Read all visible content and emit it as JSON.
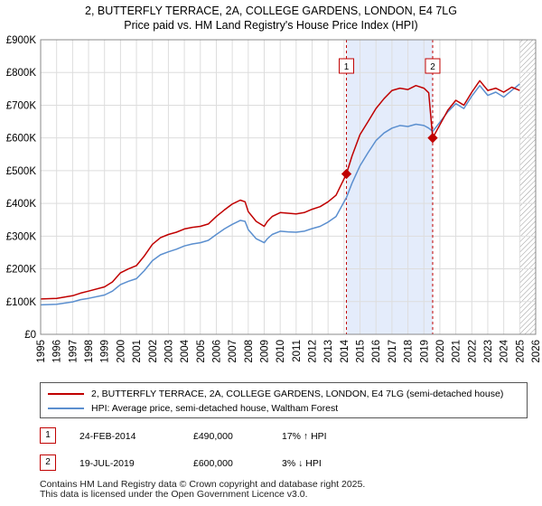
{
  "title": {
    "line1": "2, BUTTERFLY TERRACE, 2A, COLLEGE GARDENS, LONDON, E4 7LG",
    "line2": "Price paid vs. HM Land Registry's House Price Index (HPI)"
  },
  "colors": {
    "property": "#c00000",
    "hpi": "#5b8fcf",
    "shade": "#e4ecfb",
    "grid": "#dddddd",
    "hatch": "#999999"
  },
  "chart_data": {
    "type": "line",
    "y_ticks": [
      0,
      100000,
      200000,
      300000,
      400000,
      500000,
      600000,
      700000,
      800000,
      900000
    ],
    "y_tick_labels": [
      "£0",
      "£100K",
      "£200K",
      "£300K",
      "£400K",
      "£500K",
      "£600K",
      "£700K",
      "£800K",
      "£900K"
    ],
    "x_ticks": [
      1995,
      1996,
      1997,
      1998,
      1999,
      2000,
      2001,
      2002,
      2003,
      2004,
      2005,
      2006,
      2007,
      2008,
      2009,
      2010,
      2011,
      2012,
      2013,
      2014,
      2015,
      2016,
      2017,
      2018,
      2019,
      2020,
      2021,
      2022,
      2023,
      2024,
      2025,
      2026
    ],
    "x_range": [
      1995,
      2026
    ],
    "ylim": [
      0,
      900000
    ],
    "shaded_span": [
      2014.15,
      2019.55
    ],
    "future_hatch_from": 2025.0,
    "series": [
      {
        "name": "2, BUTTERFLY TERRACE, 2A, COLLEGE GARDENS, LONDON, E4 7LG (semi-detached house)",
        "x": [
          1995.0,
          1996.0,
          1997.0,
          1997.5,
          1998.0,
          1999.0,
          1999.5,
          2000.0,
          2000.5,
          2001.0,
          2001.5,
          2002.0,
          2002.5,
          2003.0,
          2003.5,
          2004.0,
          2004.5,
          2005.0,
          2005.5,
          2006.0,
          2006.5,
          2007.0,
          2007.5,
          2007.8,
          2008.0,
          2008.5,
          2009.0,
          2009.2,
          2009.5,
          2010.0,
          2010.5,
          2011.0,
          2011.5,
          2012.0,
          2012.5,
          2013.0,
          2013.5,
          2014.15,
          2014.5,
          2015.0,
          2015.5,
          2016.0,
          2016.5,
          2017.0,
          2017.5,
          2018.0,
          2018.5,
          2019.0,
          2019.3,
          2019.55,
          2020.0,
          2020.5,
          2021.0,
          2021.5,
          2022.0,
          2022.5,
          2023.0,
          2023.5,
          2024.0,
          2024.5,
          2025.0
        ],
        "y": [
          108000,
          110000,
          118000,
          126000,
          132000,
          145000,
          160000,
          188000,
          200000,
          210000,
          240000,
          275000,
          295000,
          305000,
          312000,
          322000,
          327000,
          330000,
          337000,
          360000,
          380000,
          398000,
          410000,
          405000,
          375000,
          345000,
          330000,
          345000,
          360000,
          372000,
          370000,
          368000,
          372000,
          382000,
          390000,
          405000,
          425000,
          490000,
          545000,
          610000,
          650000,
          690000,
          720000,
          745000,
          752000,
          748000,
          760000,
          752000,
          738000,
          600000,
          640000,
          685000,
          715000,
          700000,
          740000,
          775000,
          745000,
          752000,
          740000,
          755000,
          745000
        ]
      },
      {
        "name": "HPI: Average price, semi-detached house, Waltham Forest",
        "x": [
          1995.0,
          1996.0,
          1997.0,
          1997.5,
          1998.0,
          1999.0,
          1999.5,
          2000.0,
          2000.5,
          2001.0,
          2001.5,
          2002.0,
          2002.5,
          2003.0,
          2003.5,
          2004.0,
          2004.5,
          2005.0,
          2005.5,
          2006.0,
          2006.5,
          2007.0,
          2007.5,
          2007.8,
          2008.0,
          2008.5,
          2009.0,
          2009.2,
          2009.5,
          2010.0,
          2010.5,
          2011.0,
          2011.5,
          2012.0,
          2012.5,
          2013.0,
          2013.5,
          2014.15,
          2014.5,
          2015.0,
          2015.5,
          2016.0,
          2016.5,
          2017.0,
          2017.5,
          2018.0,
          2018.5,
          2019.0,
          2019.3,
          2019.55,
          2020.0,
          2020.5,
          2021.0,
          2021.5,
          2022.0,
          2022.5,
          2023.0,
          2023.5,
          2024.0,
          2024.5,
          2025.0
        ],
        "y": [
          90000,
          92000,
          99000,
          106000,
          110000,
          120000,
          132000,
          152000,
          162000,
          170000,
          195000,
          225000,
          243000,
          252000,
          260000,
          270000,
          276000,
          280000,
          287000,
          305000,
          322000,
          336000,
          348000,
          345000,
          320000,
          292000,
          280000,
          292000,
          305000,
          315000,
          313000,
          312000,
          315000,
          323000,
          330000,
          343000,
          360000,
          418000,
          462000,
          515000,
          555000,
          592000,
          615000,
          630000,
          638000,
          635000,
          642000,
          638000,
          630000,
          620000,
          648000,
          680000,
          705000,
          690000,
          728000,
          760000,
          730000,
          740000,
          725000,
          745000,
          765000
        ]
      }
    ],
    "annotations": [
      {
        "label": "1",
        "x": 2014.15,
        "y": 490000
      },
      {
        "label": "2",
        "x": 2019.55,
        "y": 600000
      }
    ]
  },
  "legend": {
    "property_label": "2, BUTTERFLY TERRACE, 2A, COLLEGE GARDENS, LONDON, E4 7LG (semi-detached house)",
    "hpi_label": "HPI: Average price, semi-detached house, Waltham Forest"
  },
  "transactions": [
    {
      "num": "1",
      "date": "24-FEB-2014",
      "price": "£490,000",
      "hpi": "17% ↑ HPI"
    },
    {
      "num": "2",
      "date": "19-JUL-2019",
      "price": "£600,000",
      "hpi": "3% ↓ HPI"
    }
  ],
  "footer": {
    "line1": "Contains HM Land Registry data © Crown copyright and database right 2025.",
    "line2": "This data is licensed under the Open Government Licence v3.0."
  }
}
